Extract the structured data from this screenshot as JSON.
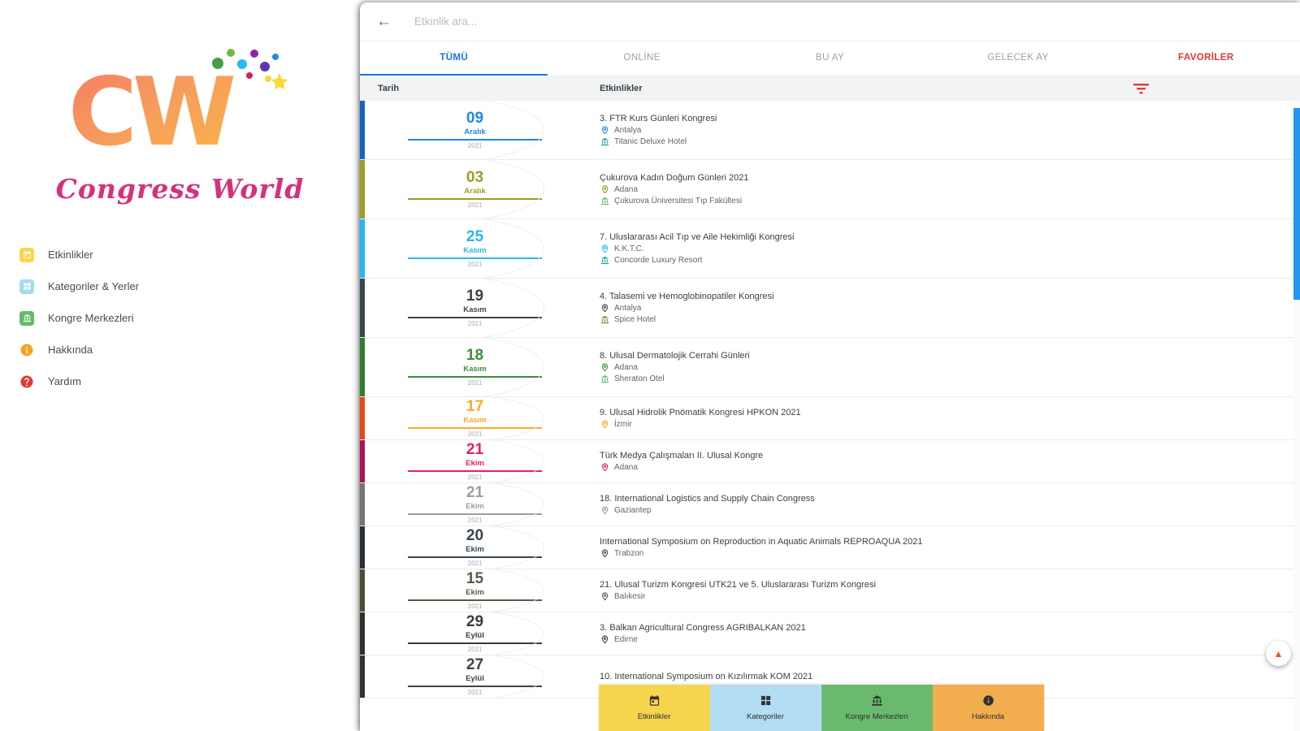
{
  "brand": {
    "name": "Congress World"
  },
  "sidebar": {
    "items": [
      {
        "slug": "etkinlikler",
        "label": "Etkinlikler",
        "icon": "events-icon",
        "color": "#f9d64a",
        "shape": "square"
      },
      {
        "slug": "kategoriler-yerler",
        "label": "Kategoriler & Yerler",
        "icon": "categories-icon",
        "color": "#a8d8f0",
        "shape": "square"
      },
      {
        "slug": "kongre-merkezleri",
        "label": "Kongre Merkezleri",
        "icon": "centers-icon",
        "color": "#67b96b",
        "shape": "square"
      },
      {
        "slug": "hakkinda",
        "label": "Hakkında",
        "icon": "about-icon",
        "color": "#f5a623",
        "shape": "circle"
      },
      {
        "slug": "yardim",
        "label": "Yardım",
        "icon": "help-icon",
        "color": "#e53935",
        "shape": "circle"
      }
    ]
  },
  "search": {
    "placeholder": "Etkinlik ara...",
    "back_glyph": "←",
    "back_icon": "back-arrow-icon"
  },
  "tabs": [
    {
      "slug": "tumu",
      "label": "TÜMÜ",
      "state": "active"
    },
    {
      "slug": "online",
      "label": "ONLİNE",
      "state": "normal"
    },
    {
      "slug": "bu-ay",
      "label": "BU AY",
      "state": "normal"
    },
    {
      "slug": "gelecek-ay",
      "label": "GELECEK AY",
      "state": "normal"
    },
    {
      "slug": "favoriler",
      "label": "FAVORİLER",
      "state": "accent"
    }
  ],
  "table": {
    "date_header": "Tarih",
    "events_header": "Etkinlikler",
    "filter_icon": "filter-icon",
    "filter_color": "#e53935"
  },
  "colors": {
    "active_tab": "#1a73e8",
    "accent_tab": "#e53935",
    "scrollbar_thumb": "#2196f3"
  },
  "events": [
    {
      "day": "09",
      "month": "Aralık",
      "year": "2021",
      "color": "#1e88e5",
      "bar": "#1565c0",
      "title": "3. FTR Kurs Günleri Kongresi",
      "city": "Antalya",
      "venue": "Titanic Deluxe Hotel",
      "venue_color": "#26a69a"
    },
    {
      "day": "03",
      "month": "Aralık",
      "year": "2021",
      "color": "#9e9d24",
      "bar": "#9e9d24",
      "title": "Çukurova Kadın Doğum Günleri 2021",
      "city": "Adana",
      "venue": "Çukurova Üniversitesi Tıp Fakültesi",
      "venue_color": "#66bb6a"
    },
    {
      "day": "25",
      "month": "Kasım",
      "year": "2021",
      "color": "#29b6f6",
      "bar": "#29b6f6",
      "title": "7. Uluslararası Acil Tıp ve Aile Hekimliği Kongresi",
      "city": "K.K.T.C.",
      "venue": "Concorde Luxury Resort",
      "venue_color": "#26a69a"
    },
    {
      "day": "19",
      "month": "Kasım",
      "year": "2021",
      "color": "#424242",
      "bar": "#37474f",
      "title": "4. Talasemi ve Hemoglobinopatiler Kongresi",
      "city": "Antalya",
      "venue": "Spice Hotel",
      "venue_color": "#7f8c4a"
    },
    {
      "day": "18",
      "month": "Kasım",
      "year": "2021",
      "color": "#388e3c",
      "bar": "#2e7d32",
      "title": "8. Ulusal Dermatolojik Cerrahi Günleri",
      "city": "Adana",
      "venue": "Sheraton Otel",
      "venue_color": "#66bb6a"
    },
    {
      "day": "17",
      "month": "Kasım",
      "year": "2021",
      "color": "#ffa726",
      "bar": "#e64a19",
      "title": "9. Ulusal Hidrolik Pnömatik Kongresi HPKON 2021",
      "city": "İzmir",
      "venue": null
    },
    {
      "day": "21",
      "month": "Ekim",
      "year": "2021",
      "color": "#e91e63",
      "bar": "#ad1457",
      "title": "Türk Medya Çalışmaları II. Ulusal Kongre",
      "city": "Adana",
      "venue": null
    },
    {
      "day": "21",
      "month": "Ekim",
      "year": "2021",
      "color": "#9e9e9e",
      "bar": "#757575",
      "title": "18. International Logistics and Supply Chain Congress",
      "city": "Gaziantep",
      "venue": null
    },
    {
      "day": "20",
      "month": "Ekim",
      "year": "2021",
      "color": "#37474f",
      "bar": "#263238",
      "title": "International Symposium on Reproduction in Aquatic Animals REPROAQUA 2021",
      "city": "Trabzon",
      "venue": null
    },
    {
      "day": "15",
      "month": "Ekim",
      "year": "2021",
      "color": "#5a5a46",
      "bar": "#4e4e36",
      "title": "21. Ulusal Turizm Kongresi UTK21 ve 5. Uluslararası Turizm Kongresi",
      "city": "Balıkesir",
      "venue": null
    },
    {
      "day": "29",
      "month": "Eylül",
      "year": "2021",
      "color": "#3e3a33",
      "bar": "#33302a",
      "title": "3. Balkan Agricultural Congress AGRIBALKAN 2021",
      "city": "Edirne",
      "venue": null
    },
    {
      "day": "27",
      "month": "Eylül",
      "year": "2021",
      "color": "#424242",
      "bar": "#333333",
      "title": "10. International Symposium on Kızılırmak KOM 2021",
      "city": "",
      "venue": null
    }
  ],
  "bottom_nav": [
    {
      "slug": "etkinlikler",
      "label": "Etkinlikler",
      "icon": "events-icon",
      "bg": "#f6d54d"
    },
    {
      "slug": "kategoriler",
      "label": "Kategoriler",
      "icon": "categories-icon",
      "bg": "#b3dcf5"
    },
    {
      "slug": "kongre-merkezleri",
      "label": "Kongre Merkezleri",
      "icon": "centers-icon",
      "bg": "#6aba6e"
    },
    {
      "slug": "hakkinda",
      "label": "Hakkında",
      "icon": "about-icon",
      "bg": "#f1ad4e"
    }
  ],
  "fab": {
    "glyph": "▲",
    "color": "#f4511e",
    "icon": "scroll-top-icon"
  }
}
